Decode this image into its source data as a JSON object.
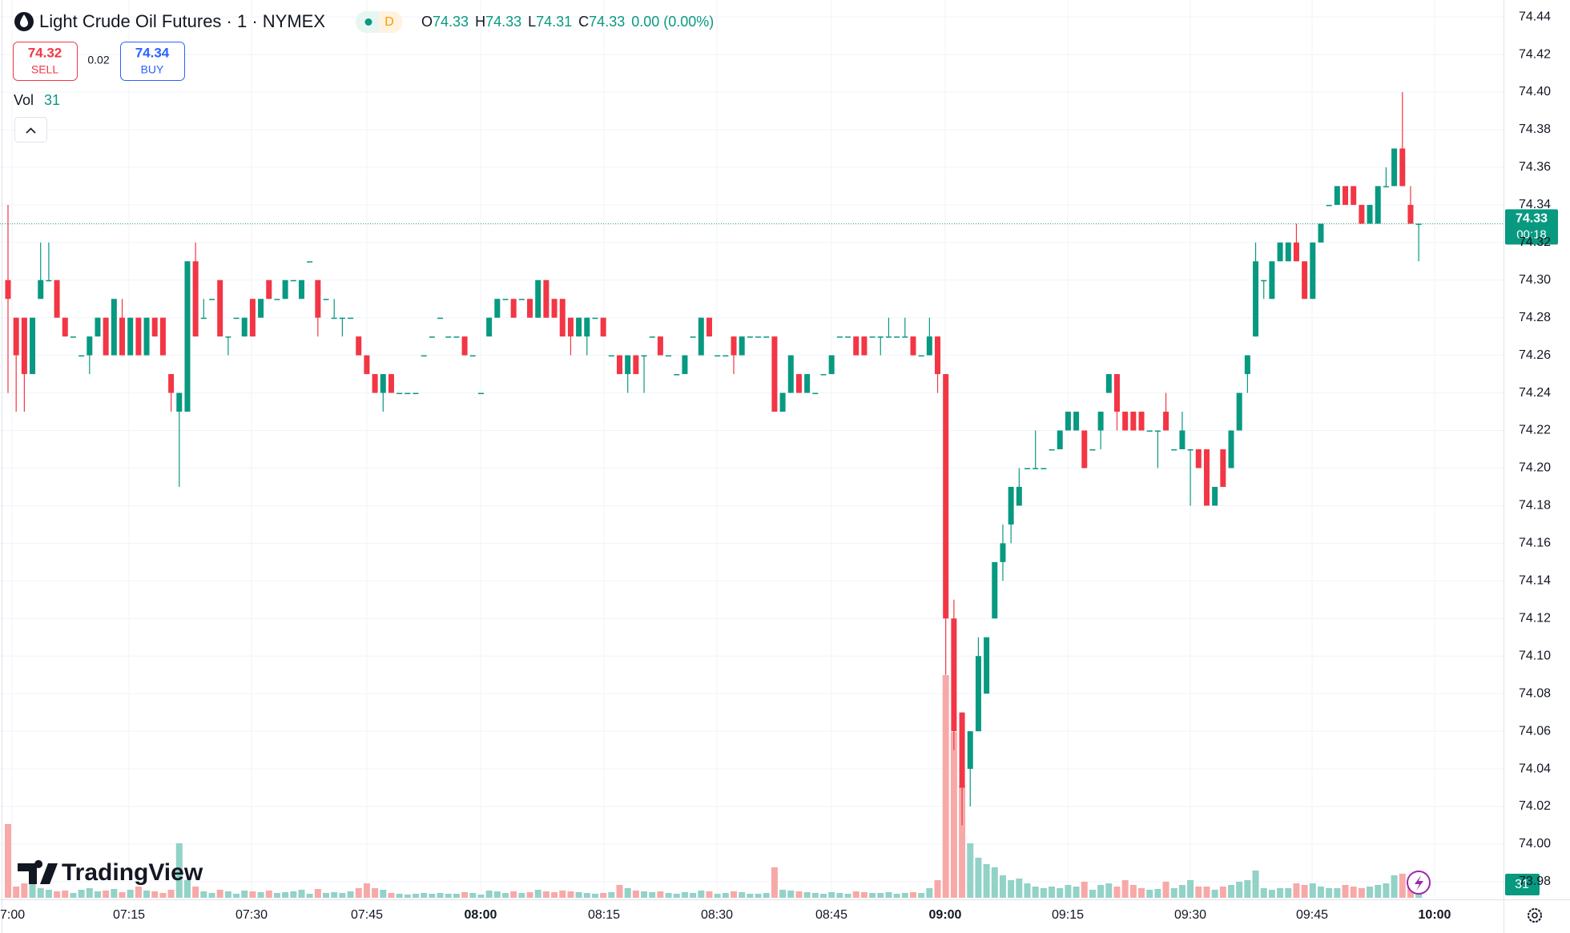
{
  "chart_data": {
    "type": "candlestick",
    "title": "Light Crude Oil Futures · 1 · NYMEX",
    "timeframe": "D",
    "ohlc_legend": [
      {
        "key": "O",
        "value": 74.33
      },
      {
        "key": "H",
        "value": 74.33
      },
      {
        "key": "L",
        "value": 74.31
      },
      {
        "key": "C",
        "value": 74.33
      }
    ],
    "change": "0.00 (0.00%)",
    "sell_price": 74.32,
    "sell_label": "SELL",
    "spread": 0.02,
    "buy_price": 74.34,
    "buy_label": "BUY",
    "volume_label": "Vol",
    "volume_last": 31,
    "last_price": 74.33,
    "countdown": "00:18",
    "watermark": "TradingView",
    "x_labels": [
      "7:00",
      "07:15",
      "07:30",
      "07:45",
      "08:00",
      "08:15",
      "08:30",
      "08:45",
      "09:00",
      "09:15",
      "09:30",
      "09:45",
      "10:00"
    ],
    "ylim": [
      73.971,
      74.449
    ],
    "yticks": [
      73.98,
      {
        "value": 74,
        "label": "74.00"
      },
      74.02,
      74.04,
      74.06,
      74.08,
      {
        "value": 74.1,
        "label": "74.10"
      },
      74.12,
      74.14,
      74.16,
      74.18,
      {
        "value": 74.2,
        "label": "74.20"
      },
      74.22,
      74.24,
      74.26,
      74.28,
      {
        "value": 74.3,
        "label": "74.30"
      },
      74.32,
      74.34,
      74.36,
      74.38,
      {
        "value": 74.4,
        "label": "74.40"
      },
      74.42,
      74.44
    ],
    "grid": true,
    "up_color": "#089981",
    "down_color": "#f23645",
    "volume_up_color": "#92d2c7",
    "volume_down_color": "#f7a9a8",
    "ohlc": [
      [
        74.3,
        74.34,
        74.24,
        74.29
      ],
      [
        74.28,
        74.28,
        74.23,
        74.26
      ],
      [
        74.28,
        74.28,
        74.23,
        74.25
      ],
      [
        74.25,
        74.28,
        74.25,
        74.28
      ],
      [
        74.29,
        74.32,
        74.29,
        74.3
      ],
      [
        74.3,
        74.32,
        74.3,
        74.3
      ],
      [
        74.3,
        74.3,
        74.28,
        74.28
      ],
      [
        74.28,
        74.28,
        74.27,
        74.27
      ],
      [
        74.27,
        74.27,
        74.27,
        74.27
      ],
      [
        74.26,
        74.26,
        74.26,
        74.26
      ],
      [
        74.26,
        74.27,
        74.25,
        74.27
      ],
      [
        74.27,
        74.28,
        74.27,
        74.28
      ],
      [
        74.28,
        74.28,
        74.26,
        74.26
      ],
      [
        74.26,
        74.29,
        74.26,
        74.29
      ],
      [
        74.28,
        74.29,
        74.26,
        74.26
      ],
      [
        74.26,
        74.28,
        74.26,
        74.28
      ],
      [
        74.28,
        74.28,
        74.26,
        74.26
      ],
      [
        74.26,
        74.28,
        74.26,
        74.28
      ],
      [
        74.28,
        74.28,
        74.27,
        74.27
      ],
      [
        74.28,
        74.28,
        74.26,
        74.26
      ],
      [
        74.25,
        74.25,
        74.23,
        74.24
      ],
      [
        74.23,
        74.24,
        74.19,
        74.24
      ],
      [
        74.23,
        74.31,
        74.23,
        74.31
      ],
      [
        74.31,
        74.32,
        74.27,
        74.27
      ],
      [
        74.28,
        74.29,
        74.28,
        74.28
      ],
      [
        74.29,
        74.29,
        74.29,
        74.29
      ],
      [
        74.3,
        74.3,
        74.27,
        74.27
      ],
      [
        74.27,
        74.27,
        74.26,
        74.27
      ],
      [
        74.28,
        74.28,
        74.28,
        74.28
      ],
      [
        74.27,
        74.28,
        74.27,
        74.28
      ],
      [
        74.29,
        74.29,
        74.27,
        74.27
      ],
      [
        74.28,
        74.29,
        74.28,
        74.29
      ],
      [
        74.3,
        74.3,
        74.29,
        74.29
      ],
      [
        74.29,
        74.29,
        74.29,
        74.29
      ],
      [
        74.29,
        74.3,
        74.29,
        74.3
      ],
      [
        74.3,
        74.3,
        74.3,
        74.3
      ],
      [
        74.29,
        74.3,
        74.29,
        74.3
      ],
      [
        74.31,
        74.31,
        74.31,
        74.31
      ],
      [
        74.3,
        74.3,
        74.27,
        74.28
      ],
      [
        74.29,
        74.29,
        74.29,
        74.29
      ],
      [
        74.28,
        74.29,
        74.28,
        74.28
      ],
      [
        74.28,
        74.28,
        74.27,
        74.28
      ],
      [
        74.28,
        74.28,
        74.28,
        74.28
      ],
      [
        74.27,
        74.27,
        74.26,
        74.26
      ],
      [
        74.26,
        74.26,
        74.25,
        74.25
      ],
      [
        74.25,
        74.25,
        74.24,
        74.24
      ],
      [
        74.24,
        74.25,
        74.23,
        74.25
      ],
      [
        74.25,
        74.25,
        74.24,
        74.24
      ],
      [
        74.24,
        74.24,
        74.24,
        74.24
      ],
      [
        74.24,
        74.24,
        74.24,
        74.24
      ],
      [
        74.24,
        74.24,
        74.24,
        74.24
      ],
      [
        74.26,
        74.26,
        74.26,
        74.26
      ],
      [
        74.27,
        74.27,
        74.27,
        74.27
      ],
      [
        74.28,
        74.28,
        74.28,
        74.28
      ],
      [
        74.27,
        74.27,
        74.27,
        74.27
      ],
      [
        74.27,
        74.27,
        74.27,
        74.27
      ],
      [
        74.27,
        74.27,
        74.26,
        74.26
      ],
      [
        74.26,
        74.26,
        74.26,
        74.26
      ],
      [
        74.24,
        74.24,
        74.24,
        74.24
      ],
      [
        74.27,
        74.28,
        74.27,
        74.28
      ],
      [
        74.28,
        74.29,
        74.28,
        74.29
      ],
      [
        74.29,
        74.29,
        74.29,
        74.29
      ],
      [
        74.29,
        74.29,
        74.28,
        74.28
      ],
      [
        74.29,
        74.29,
        74.29,
        74.29
      ],
      [
        74.29,
        74.29,
        74.28,
        74.28
      ],
      [
        74.28,
        74.3,
        74.28,
        74.3
      ],
      [
        74.3,
        74.3,
        74.28,
        74.28
      ],
      [
        74.29,
        74.29,
        74.28,
        74.28
      ],
      [
        74.29,
        74.29,
        74.27,
        74.27
      ],
      [
        74.28,
        74.28,
        74.26,
        74.27
      ],
      [
        74.27,
        74.28,
        74.27,
        74.28
      ],
      [
        74.27,
        74.28,
        74.26,
        74.28
      ],
      [
        74.28,
        74.28,
        74.28,
        74.28
      ],
      [
        74.28,
        74.28,
        74.27,
        74.27
      ],
      [
        74.26,
        74.26,
        74.26,
        74.26
      ],
      [
        74.26,
        74.26,
        74.25,
        74.25
      ],
      [
        74.25,
        74.26,
        74.24,
        74.26
      ],
      [
        74.26,
        74.26,
        74.25,
        74.25
      ],
      [
        74.26,
        74.26,
        74.24,
        74.26
      ],
      [
        74.27,
        74.27,
        74.27,
        74.27
      ],
      [
        74.27,
        74.27,
        74.26,
        74.26
      ],
      [
        74.26,
        74.26,
        74.26,
        74.26
      ],
      [
        74.25,
        74.25,
        74.25,
        74.25
      ],
      [
        74.25,
        74.26,
        74.25,
        74.26
      ],
      [
        74.27,
        74.27,
        74.27,
        74.27
      ],
      [
        74.26,
        74.28,
        74.26,
        74.28
      ],
      [
        74.28,
        74.28,
        74.27,
        74.27
      ],
      [
        74.26,
        74.26,
        74.26,
        74.26
      ],
      [
        74.26,
        74.26,
        74.26,
        74.26
      ],
      [
        74.27,
        74.27,
        74.25,
        74.26
      ],
      [
        74.26,
        74.27,
        74.26,
        74.27
      ],
      [
        74.27,
        74.27,
        74.27,
        74.27
      ],
      [
        74.27,
        74.27,
        74.27,
        74.27
      ],
      [
        74.27,
        74.27,
        74.27,
        74.27
      ],
      [
        74.27,
        74.27,
        74.23,
        74.23
      ],
      [
        74.23,
        74.24,
        74.23,
        74.24
      ],
      [
        74.24,
        74.26,
        74.24,
        74.26
      ],
      [
        74.25,
        74.25,
        74.24,
        74.24
      ],
      [
        74.24,
        74.25,
        74.24,
        74.25
      ],
      [
        74.24,
        74.24,
        74.24,
        74.24
      ],
      [
        74.25,
        74.25,
        74.25,
        74.25
      ],
      [
        74.25,
        74.26,
        74.25,
        74.26
      ],
      [
        74.27,
        74.27,
        74.27,
        74.27
      ],
      [
        74.27,
        74.27,
        74.27,
        74.27
      ],
      [
        74.27,
        74.27,
        74.26,
        74.26
      ],
      [
        74.27,
        74.27,
        74.26,
        74.26
      ],
      [
        74.27,
        74.27,
        74.27,
        74.27
      ],
      [
        74.27,
        74.27,
        74.26,
        74.27
      ],
      [
        74.27,
        74.28,
        74.27,
        74.27
      ],
      [
        74.27,
        74.27,
        74.27,
        74.27
      ],
      [
        74.27,
        74.28,
        74.27,
        74.27
      ],
      [
        74.27,
        74.27,
        74.26,
        74.26
      ],
      [
        74.26,
        74.26,
        74.26,
        74.26
      ],
      [
        74.26,
        74.28,
        74.26,
        74.27
      ],
      [
        74.27,
        74.27,
        74.24,
        74.25
      ],
      [
        74.25,
        74.25,
        74.09,
        74.12
      ],
      [
        74.12,
        74.13,
        74.05,
        74.06
      ],
      [
        74.07,
        74.07,
        74.01,
        74.03
      ],
      [
        74.04,
        74.06,
        74.02,
        74.06
      ],
      [
        74.06,
        74.11,
        74.06,
        74.1
      ],
      [
        74.08,
        74.11,
        74.08,
        74.11
      ],
      [
        74.12,
        74.15,
        74.12,
        74.15
      ],
      [
        74.15,
        74.17,
        74.14,
        74.16
      ],
      [
        74.17,
        74.19,
        74.16,
        74.19
      ],
      [
        74.18,
        74.2,
        74.18,
        74.19
      ],
      [
        74.2,
        74.2,
        74.2,
        74.2
      ],
      [
        74.2,
        74.22,
        74.2,
        74.2
      ],
      [
        74.2,
        74.2,
        74.2,
        74.2
      ],
      [
        74.21,
        74.21,
        74.21,
        74.21
      ],
      [
        74.21,
        74.22,
        74.21,
        74.22
      ],
      [
        74.22,
        74.23,
        74.22,
        74.23
      ],
      [
        74.22,
        74.23,
        74.22,
        74.23
      ],
      [
        74.22,
        74.22,
        74.2,
        74.2
      ],
      [
        74.21,
        74.21,
        74.21,
        74.21
      ],
      [
        74.22,
        74.23,
        74.21,
        74.23
      ],
      [
        74.24,
        74.25,
        74.24,
        74.25
      ],
      [
        74.25,
        74.25,
        74.22,
        74.23
      ],
      [
        74.23,
        74.23,
        74.22,
        74.22
      ],
      [
        74.23,
        74.23,
        74.22,
        74.22
      ],
      [
        74.23,
        74.23,
        74.22,
        74.22
      ],
      [
        74.22,
        74.22,
        74.22,
        74.22
      ],
      [
        74.22,
        74.22,
        74.2,
        74.22
      ],
      [
        74.23,
        74.24,
        74.22,
        74.22
      ],
      [
        74.21,
        74.21,
        74.21,
        74.21
      ],
      [
        74.21,
        74.23,
        74.21,
        74.22
      ],
      [
        74.21,
        74.21,
        74.18,
        74.21
      ],
      [
        74.21,
        74.21,
        74.2,
        74.2
      ],
      [
        74.21,
        74.21,
        74.18,
        74.18
      ],
      [
        74.18,
        74.19,
        74.18,
        74.19
      ],
      [
        74.21,
        74.21,
        74.19,
        74.19
      ],
      [
        74.2,
        74.22,
        74.2,
        74.22
      ],
      [
        74.22,
        74.24,
        74.22,
        74.24
      ],
      [
        74.25,
        74.26,
        74.24,
        74.26
      ],
      [
        74.27,
        74.32,
        74.27,
        74.31
      ],
      [
        74.3,
        74.3,
        74.29,
        74.3
      ],
      [
        74.29,
        74.31,
        74.29,
        74.31
      ],
      [
        74.31,
        74.32,
        74.31,
        74.32
      ],
      [
        74.31,
        74.32,
        74.31,
        74.32
      ],
      [
        74.32,
        74.33,
        74.31,
        74.31
      ],
      [
        74.31,
        74.31,
        74.29,
        74.29
      ],
      [
        74.29,
        74.32,
        74.29,
        74.32
      ],
      [
        74.32,
        74.33,
        74.32,
        74.33
      ],
      [
        74.34,
        74.34,
        74.34,
        74.34
      ],
      [
        74.34,
        74.35,
        74.34,
        74.35
      ],
      [
        74.35,
        74.35,
        74.34,
        74.34
      ],
      [
        74.35,
        74.35,
        74.34,
        74.34
      ],
      [
        74.34,
        74.34,
        74.33,
        74.33
      ],
      [
        74.33,
        74.34,
        74.33,
        74.34
      ],
      [
        74.33,
        74.35,
        74.33,
        74.35
      ],
      [
        74.35,
        74.36,
        74.35,
        74.35
      ],
      [
        74.35,
        74.37,
        74.35,
        74.37
      ],
      [
        74.37,
        74.4,
        74.35,
        74.35
      ],
      [
        74.34,
        74.35,
        74.33,
        74.33
      ],
      [
        74.33,
        74.33,
        74.31,
        74.33
      ]
    ],
    "volume": [
      92,
      14,
      18,
      22,
      12,
      10,
      8,
      9,
      6,
      10,
      12,
      8,
      9,
      11,
      7,
      10,
      14,
      9,
      8,
      6,
      10,
      68,
      22,
      14,
      8,
      6,
      10,
      8,
      5,
      9,
      8,
      7,
      9,
      6,
      7,
      8,
      10,
      5,
      11,
      6,
      7,
      6,
      8,
      12,
      18,
      12,
      10,
      6,
      5,
      4,
      5,
      6,
      5,
      6,
      5,
      5,
      7,
      6,
      4,
      9,
      8,
      6,
      8,
      6,
      7,
      10,
      8,
      7,
      9,
      8,
      7,
      6,
      5,
      6,
      7,
      16,
      12,
      9,
      8,
      7,
      8,
      6,
      5,
      7,
      6,
      9,
      8,
      5,
      6,
      8,
      7,
      5,
      5,
      6,
      38,
      10,
      9,
      8,
      7,
      6,
      5,
      7,
      6,
      5,
      8,
      7,
      6,
      6,
      7,
      5,
      6,
      7,
      6,
      12,
      22,
      278,
      207,
      140,
      68,
      50,
      42,
      38,
      28,
      22,
      24,
      18,
      14,
      12,
      14,
      12,
      16,
      14,
      20,
      10,
      16,
      18,
      14,
      22,
      16,
      12,
      10,
      11,
      20,
      12,
      16,
      22,
      14,
      14,
      10,
      14,
      16,
      20,
      22,
      34,
      12,
      10,
      12,
      12,
      18,
      16,
      18,
      14,
      12,
      12,
      16,
      14,
      12,
      14,
      16,
      18,
      28,
      30,
      24,
      31
    ]
  }
}
